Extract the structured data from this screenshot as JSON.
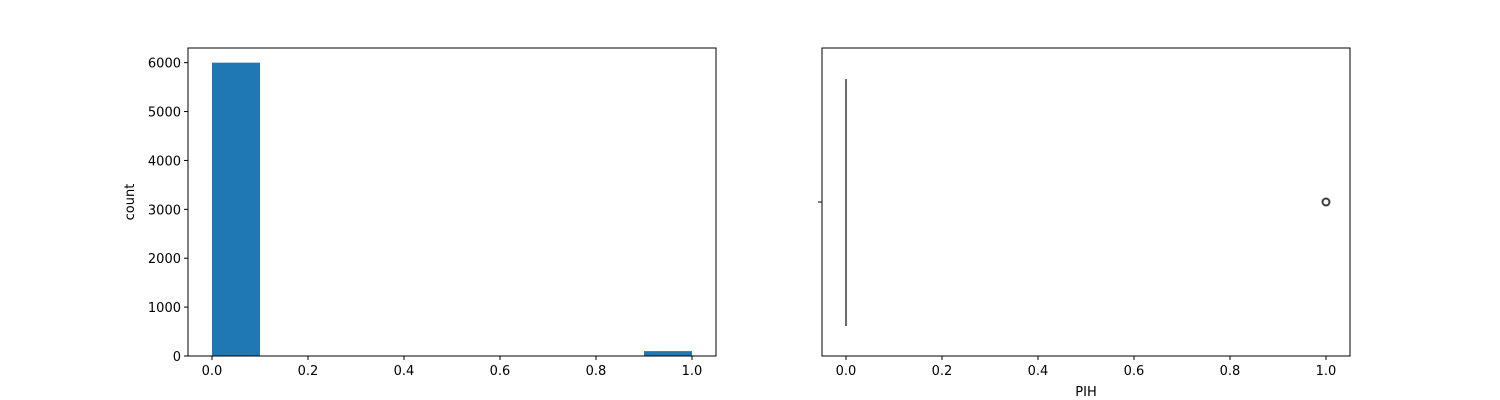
{
  "chart_data": [
    {
      "type": "bar",
      "title": "",
      "xlabel": "",
      "ylabel": "count",
      "xlim": [
        -0.05,
        1.05
      ],
      "ylim": [
        0,
        6300
      ],
      "xticks": [
        "0.0",
        "0.2",
        "0.4",
        "0.6",
        "0.8",
        "1.0"
      ],
      "yticks": [
        "0",
        "1000",
        "2000",
        "3000",
        "4000",
        "5000",
        "6000"
      ],
      "bins": [
        {
          "x0": 0.0,
          "x1": 0.1,
          "count": 6000
        },
        {
          "x0": 0.1,
          "x1": 0.2,
          "count": 0
        },
        {
          "x0": 0.2,
          "x1": 0.3,
          "count": 0
        },
        {
          "x0": 0.3,
          "x1": 0.4,
          "count": 0
        },
        {
          "x0": 0.4,
          "x1": 0.5,
          "count": 0
        },
        {
          "x0": 0.5,
          "x1": 0.6,
          "count": 0
        },
        {
          "x0": 0.6,
          "x1": 0.7,
          "count": 0
        },
        {
          "x0": 0.7,
          "x1": 0.8,
          "count": 0
        },
        {
          "x0": 0.8,
          "x1": 0.9,
          "count": 0
        },
        {
          "x0": 0.9,
          "x1": 1.0,
          "count": 100
        }
      ],
      "color": "#1f77b4"
    },
    {
      "type": "box",
      "title": "",
      "xlabel": "PIH",
      "ylabel": "",
      "xlim": [
        -0.05,
        1.05
      ],
      "xticks": [
        "0.0",
        "0.2",
        "0.4",
        "0.6",
        "0.8",
        "1.0"
      ],
      "box": {
        "min": 0,
        "q1": 0,
        "median": 0,
        "q3": 0,
        "max": 0
      },
      "outliers": [
        1.0
      ],
      "color": "#3c3c3c"
    }
  ]
}
